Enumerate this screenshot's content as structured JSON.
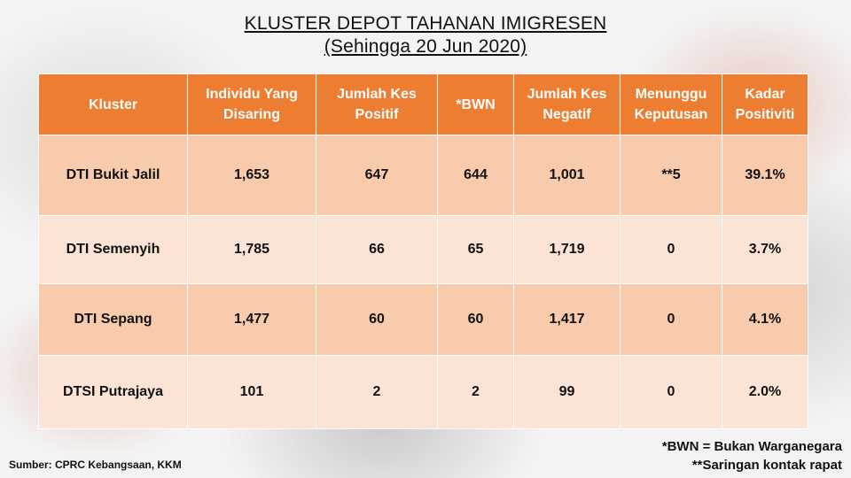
{
  "title": {
    "line1": "KLUSTER DEPOT TAHANAN IMIGRESEN",
    "line2": "(Sehingga 20 Jun 2020)"
  },
  "table": {
    "headers": [
      "Kluster",
      "Individu Yang Disaring",
      "Jumlah Kes Positif",
      "*BWN",
      "Jumlah Kes Negatif",
      "Menunggu Keputusan",
      "Kadar Positiviti"
    ],
    "rows": [
      [
        "DTI Bukit Jalil",
        "1,653",
        "647",
        "644",
        "1,001",
        "**5",
        "39.1%"
      ],
      [
        "DTI Semenyih",
        "1,785",
        "66",
        "65",
        "1,719",
        "0",
        "3.7%"
      ],
      [
        "DTI Sepang",
        "1,477",
        "60",
        "60",
        "1,417",
        "0",
        "4.1%"
      ],
      [
        "DTSI Putrajaya",
        "101",
        "2",
        "2",
        "99",
        "0",
        "2.0%"
      ]
    ]
  },
  "footer": {
    "source": "Sumber: CPRC Kebangsaan, KKM",
    "note1": "*BWN = Bukan Warganegara",
    "note2": "**Saringan kontak rapat"
  },
  "colors": {
    "header_bg": "#ed7d31",
    "row_dark": "#f8cbad",
    "row_light": "#fbe4d5"
  }
}
